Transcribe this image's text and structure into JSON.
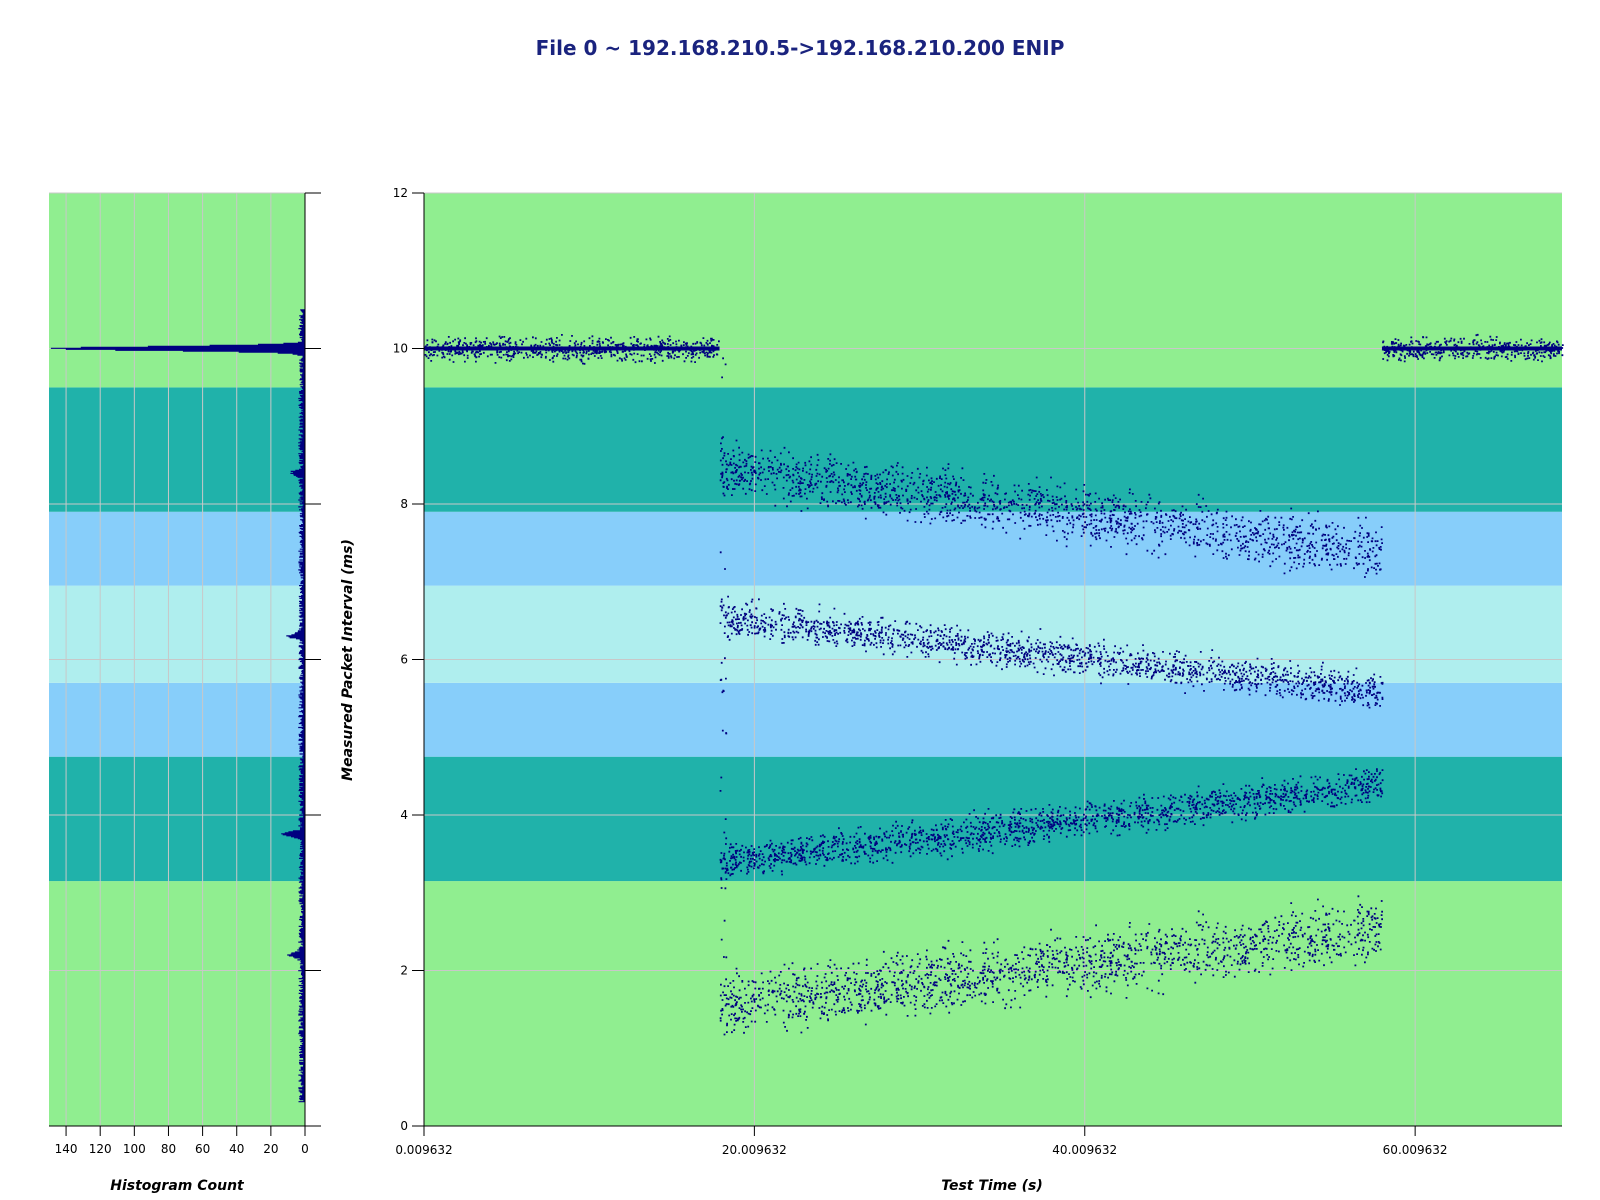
{
  "title": "File 0 ~ 192.168.210.5->192.168.210.200 ENIP",
  "colors": {
    "plot_band_outer": "#90ee90",
    "plot_band_mid": "#20b2aa",
    "plot_band_inner": "#87cefa",
    "plot_band_center": "#afeeee",
    "points": "#000080",
    "grid": "#c8c8c8"
  },
  "chart_data": [
    {
      "type": "scatter",
      "title": "File 0 ~ 192.168.210.5->192.168.210.200 ENIP",
      "xlabel": "Test Time (s)",
      "ylabel": "Measured Packet Interval (ms)",
      "xlim": [
        0.009632,
        68.9
      ],
      "ylim": [
        0,
        12
      ],
      "x_ticks": [
        0.009632,
        20.009632,
        40.009632,
        60.009632
      ],
      "x_tick_labels": [
        "0.009632",
        "20.009632",
        "40.009632",
        "60.009632"
      ],
      "y_ticks": [
        0,
        2,
        4,
        6,
        8,
        10,
        12
      ],
      "grid": true,
      "background_bands": [
        {
          "from": 0,
          "to": 3.15,
          "color": "#90ee90"
        },
        {
          "from": 3.15,
          "to": 4.75,
          "color": "#20b2aa"
        },
        {
          "from": 4.75,
          "to": 5.7,
          "color": "#87cefa"
        },
        {
          "from": 5.7,
          "to": 6.95,
          "color": "#afeeee"
        },
        {
          "from": 6.95,
          "to": 7.9,
          "color": "#87cefa"
        },
        {
          "from": 7.9,
          "to": 9.5,
          "color": "#20b2aa"
        },
        {
          "from": 9.5,
          "to": 12,
          "color": "#90ee90"
        }
      ],
      "series": [
        {
          "segments": [
            {
              "x": [
                0.009632,
                17.9
              ],
              "y": [
                10.0,
                10.0
              ],
              "spread": 0.12
            },
            {
              "x": [
                58.0,
                68.9
              ],
              "y": [
                10.0,
                10.0
              ],
              "spread": 0.12
            },
            {
              "x": [
                17.9,
                58.0
              ],
              "y": [
                8.45,
                7.4
              ],
              "spread": 0.28
            },
            {
              "x": [
                17.9,
                58.0
              ],
              "y": [
                6.55,
                5.6
              ],
              "spread": 0.18
            },
            {
              "x": [
                17.9,
                58.0
              ],
              "y": [
                3.4,
                4.4
              ],
              "spread": 0.18
            },
            {
              "x": [
                17.9,
                58.0
              ],
              "y": [
                1.55,
                2.55
              ],
              "spread": 0.32
            }
          ]
        }
      ]
    },
    {
      "type": "histogram",
      "xlabel": "Histogram Count",
      "xlim": [
        150,
        0
      ],
      "x_ticks": [
        140,
        120,
        100,
        80,
        60,
        40,
        20,
        0
      ],
      "ylim": [
        0,
        12
      ],
      "peaks": [
        {
          "y": 10.0,
          "count": 148
        },
        {
          "y": 3.75,
          "count": 12
        },
        {
          "y": 6.3,
          "count": 8
        },
        {
          "y": 2.2,
          "count": 8
        },
        {
          "y": 8.4,
          "count": 6
        }
      ]
    }
  ]
}
